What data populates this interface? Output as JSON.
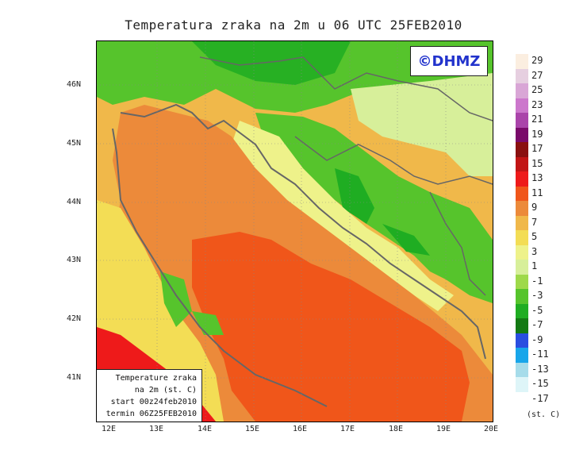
{
  "title": "Temperatura zraka na 2m u 06 UTC 25FEB2010",
  "brand": "©DHMZ",
  "info_box": {
    "line1": "Temperature zraka",
    "line2": "na 2m (st. C)",
    "line3": "start 00z24feb2010",
    "line4": "termin 06Z25FEB2010"
  },
  "lat_ticks": [
    "46N",
    "45N",
    "44N",
    "43N",
    "42N",
    "41N"
  ],
  "lon_ticks": [
    "12E",
    "13E",
    "14E",
    "15E",
    "16E",
    "17E",
    "18E",
    "19E",
    "20E"
  ],
  "legend": {
    "unit": "(st. C)",
    "labels": [
      "29",
      "27",
      "25",
      "23",
      "21",
      "19",
      "17",
      "15",
      "13",
      "11",
      "9",
      "7",
      "5",
      "3",
      "1",
      "-1",
      "-3",
      "-5",
      "-7",
      "-9",
      "-11",
      "-13",
      "-15",
      "-17"
    ],
    "colors": [
      "#fbeee0",
      "#e6cfe0",
      "#d9a6d6",
      "#cc77cc",
      "#aa44aa",
      "#7a0a6a",
      "#8a1010",
      "#c21515",
      "#ee1a1a",
      "#f0561a",
      "#ec8a3a",
      "#f0b84a",
      "#f3dd55",
      "#eef28a",
      "#d7ef9a",
      "#9ed94a",
      "#56c42c",
      "#1fad22",
      "#147a14",
      "#2a4ee0",
      "#18a6ea",
      "#a6dcea",
      "#def5f8"
    ]
  }
}
